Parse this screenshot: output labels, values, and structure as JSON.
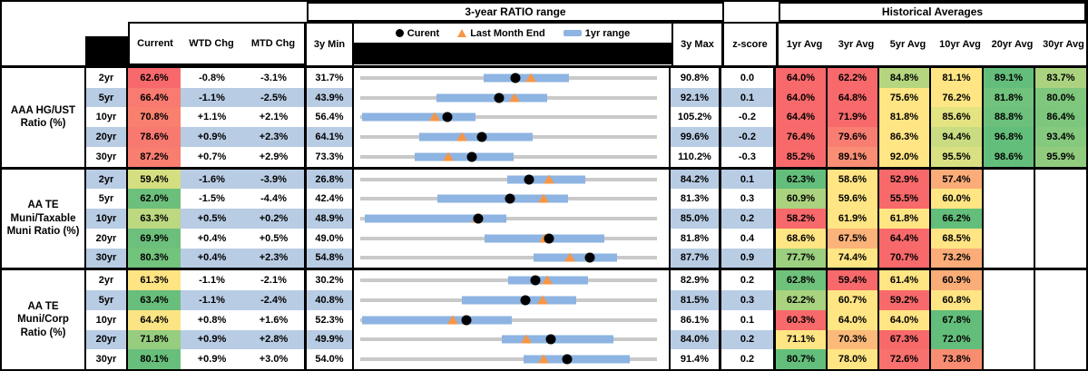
{
  "header": {
    "ratio_range_title": "3-year RATIO range",
    "historical_title": "Historical Averages",
    "columns": {
      "current": "Current",
      "wtd": "WTD Chg",
      "mtd": "MTD Chg",
      "min": "3y Min",
      "max": "3y Max",
      "zscore": "z-score"
    },
    "avg_headers": [
      "1yr Avg",
      "3yr Avg",
      "5yr Avg",
      "10yr Avg",
      "20yr Avg",
      "30yr Avg"
    ],
    "legend": {
      "current": "Curent",
      "last_month": "Last Month End",
      "range": "1yr range"
    }
  },
  "colors": {
    "row_alt": "#B8CCE4",
    "bar_1yr": "#8DB4E2",
    "track": "#C9C9C9",
    "marker_current": "#000000",
    "marker_last_month": "#F79646",
    "heat_red": "#F8696B",
    "heat_yellow": "#FFE583",
    "heat_green": "#63BE7B"
  },
  "chart_data": {
    "type": "table",
    "title": "3-year RATIO range",
    "note": "Each row shows current ratio, WTD/MTD change, 3y min/max, a bullet chart (gray = 3y range, blue = 1yr range, black dot = current, orange triangle = last month end), z-score and historical averages. range_low/range_high and last_month are values in % estimated from marker positions.",
    "groups": [
      {
        "label": "AAA HG/UST Ratio (%)",
        "rows": [
          {
            "tenor": "2yr",
            "current": 62.6,
            "current_bg": "#F8696B",
            "wtd": -0.8,
            "mtd": -3.1,
            "min": 31.7,
            "max": 90.8,
            "z": 0.0,
            "last_month": 65.7,
            "range_low": 56.3,
            "range_high": 73.2,
            "avgs": [
              {
                "v": 64.0,
                "bg": "#F8696B"
              },
              {
                "v": 62.2,
                "bg": "#F8696B"
              },
              {
                "v": 84.8,
                "bg": "#B5D67F"
              },
              {
                "v": 81.1,
                "bg": "#FFE583"
              },
              {
                "v": 89.1,
                "bg": "#63BE7B"
              },
              {
                "v": 83.7,
                "bg": "#ABD37F"
              }
            ]
          },
          {
            "tenor": "5yr",
            "current": 66.4,
            "current_bg": "#F87A71",
            "wtd": -1.1,
            "mtd": -2.5,
            "min": 43.9,
            "max": 92.1,
            "z": 0.1,
            "last_month": 68.9,
            "range_low": 56.3,
            "range_high": 74.2,
            "avgs": [
              {
                "v": 64.0,
                "bg": "#F8696B"
              },
              {
                "v": 64.8,
                "bg": "#F8696B"
              },
              {
                "v": 75.6,
                "bg": "#FFE583"
              },
              {
                "v": 76.2,
                "bg": "#FFE583"
              },
              {
                "v": 81.8,
                "bg": "#70C27C"
              },
              {
                "v": 80.0,
                "bg": "#7FC77D"
              }
            ]
          },
          {
            "tenor": "10yr",
            "current": 70.8,
            "current_bg": "#F9806F",
            "wtd": 1.1,
            "mtd": 2.1,
            "min": 56.4,
            "max": 105.2,
            "z": -0.2,
            "last_month": 68.7,
            "range_low": 56.7,
            "range_high": 75.4,
            "avgs": [
              {
                "v": 64.4,
                "bg": "#F8696B"
              },
              {
                "v": 71.9,
                "bg": "#F8696B"
              },
              {
                "v": 81.8,
                "bg": "#FFE583"
              },
              {
                "v": 85.6,
                "bg": "#E3E382"
              },
              {
                "v": 88.8,
                "bg": "#6CC07C"
              },
              {
                "v": 86.4,
                "bg": "#7CC67D"
              }
            ]
          },
          {
            "tenor": "20yr",
            "current": 78.6,
            "current_bg": "#F87970",
            "wtd": 0.9,
            "mtd": 2.3,
            "min": 64.1,
            "max": 99.6,
            "z": -0.2,
            "last_month": 76.3,
            "range_low": 71.2,
            "range_high": 84.7,
            "avgs": [
              {
                "v": 76.4,
                "bg": "#F8696B"
              },
              {
                "v": 79.6,
                "bg": "#F87E72"
              },
              {
                "v": 86.3,
                "bg": "#FFE583"
              },
              {
                "v": 94.4,
                "bg": "#C9DC81"
              },
              {
                "v": 96.8,
                "bg": "#63BE7B"
              },
              {
                "v": 93.4,
                "bg": "#85C97E"
              }
            ]
          },
          {
            "tenor": "30yr",
            "current": 87.2,
            "current_bg": "#F97E6F",
            "wtd": 0.7,
            "mtd": 2.9,
            "min": 73.3,
            "max": 110.2,
            "z": -0.3,
            "last_month": 84.3,
            "range_low": 80.1,
            "range_high": 92.4,
            "avgs": [
              {
                "v": 85.2,
                "bg": "#F8696B"
              },
              {
                "v": 89.1,
                "bg": "#F98E74"
              },
              {
                "v": 92.0,
                "bg": "#FFE583"
              },
              {
                "v": 95.5,
                "bg": "#D9E082"
              },
              {
                "v": 98.6,
                "bg": "#63BE7B"
              },
              {
                "v": 95.9,
                "bg": "#90CB7E"
              }
            ]
          }
        ]
      },
      {
        "label": "AA TE Muni/Taxable Muni Ratio (%)",
        "rows": [
          {
            "tenor": "2yr",
            "current": 59.4,
            "current_bg": "#D5DE81",
            "wtd": -1.6,
            "mtd": -3.9,
            "min": 26.8,
            "max": 84.2,
            "z": 0.1,
            "last_month": 63.3,
            "range_low": 55.3,
            "range_high": 70.4,
            "avgs": [
              {
                "v": 62.3,
                "bg": "#63BE7B"
              },
              {
                "v": 58.6,
                "bg": "#FFE583"
              },
              {
                "v": 52.9,
                "bg": "#F8696B"
              },
              {
                "v": 57.4,
                "bg": "#FBAC78"
              },
              {
                "v": null,
                "bg": null
              },
              {
                "v": null,
                "bg": null
              }
            ]
          },
          {
            "tenor": "5yr",
            "current": 62.0,
            "current_bg": "#6CC07C",
            "wtd": -1.5,
            "mtd": -4.4,
            "min": 42.4,
            "max": 81.3,
            "z": 0.3,
            "last_month": 66.4,
            "range_low": 52.5,
            "range_high": 69.6,
            "avgs": [
              {
                "v": 60.9,
                "bg": "#ABD37F"
              },
              {
                "v": 59.6,
                "bg": "#FFE583"
              },
              {
                "v": 55.5,
                "bg": "#F8696B"
              },
              {
                "v": 60.0,
                "bg": "#FFE583"
              },
              {
                "v": null,
                "bg": null
              },
              {
                "v": null,
                "bg": null
              }
            ]
          },
          {
            "tenor": "10yr",
            "current": 63.3,
            "current_bg": "#BCD880",
            "wtd": 0.5,
            "mtd": 0.2,
            "min": 48.9,
            "max": 85.0,
            "z": 0.2,
            "last_month": 63.1,
            "range_low": 49.4,
            "range_high": 66.7,
            "avgs": [
              {
                "v": 58.2,
                "bg": "#F8696B"
              },
              {
                "v": 61.9,
                "bg": "#FFE583"
              },
              {
                "v": 61.8,
                "bg": "#FFE583"
              },
              {
                "v": 66.2,
                "bg": "#63BE7B"
              },
              {
                "v": null,
                "bg": null
              },
              {
                "v": null,
                "bg": null
              }
            ]
          },
          {
            "tenor": "20yr",
            "current": 69.9,
            "current_bg": "#6CC07C",
            "wtd": 0.4,
            "mtd": 0.5,
            "min": 49.0,
            "max": 81.8,
            "z": 0.4,
            "last_month": 69.4,
            "range_low": 62.7,
            "range_high": 76.0,
            "avgs": [
              {
                "v": 68.6,
                "bg": "#FFE583"
              },
              {
                "v": 67.5,
                "bg": "#FBB379"
              },
              {
                "v": 64.4,
                "bg": "#F8696B"
              },
              {
                "v": 68.5,
                "bg": "#FFE583"
              },
              {
                "v": null,
                "bg": null
              },
              {
                "v": null,
                "bg": null
              }
            ]
          },
          {
            "tenor": "30yr",
            "current": 80.3,
            "current_bg": "#72C37C",
            "wtd": 0.4,
            "mtd": 2.3,
            "min": 54.8,
            "max": 87.7,
            "z": 0.9,
            "last_month": 78.0,
            "range_low": 74.0,
            "range_high": 83.3,
            "avgs": [
              {
                "v": 77.7,
                "bg": "#9CCF7F"
              },
              {
                "v": 74.4,
                "bg": "#FFE583"
              },
              {
                "v": 70.7,
                "bg": "#F8696B"
              },
              {
                "v": 73.2,
                "bg": "#FBAC78"
              },
              {
                "v": null,
                "bg": null
              },
              {
                "v": null,
                "bg": null
              }
            ]
          }
        ]
      },
      {
        "label": "AA TE Muni/Corp Ratio (%)",
        "rows": [
          {
            "tenor": "2yr",
            "current": 61.3,
            "current_bg": "#FFE483",
            "wtd": -1.1,
            "mtd": -2.1,
            "min": 30.2,
            "max": 82.9,
            "z": 0.2,
            "last_month": 63.4,
            "range_low": 56.4,
            "range_high": 70.7,
            "avgs": [
              {
                "v": 62.8,
                "bg": "#6FC27C"
              },
              {
                "v": 59.4,
                "bg": "#F8696B"
              },
              {
                "v": 61.4,
                "bg": "#FFE583"
              },
              {
                "v": 60.9,
                "bg": "#FBAD78"
              },
              {
                "v": null,
                "bg": null
              },
              {
                "v": null,
                "bg": null
              }
            ]
          },
          {
            "tenor": "5yr",
            "current": 63.4,
            "current_bg": "#68BF7B",
            "wtd": -1.1,
            "mtd": -2.4,
            "min": 40.8,
            "max": 81.5,
            "z": 0.3,
            "last_month": 65.8,
            "range_low": 54.7,
            "range_high": 70.4,
            "avgs": [
              {
                "v": 62.2,
                "bg": "#A9D37F"
              },
              {
                "v": 60.7,
                "bg": "#FFE583"
              },
              {
                "v": 59.2,
                "bg": "#F8696B"
              },
              {
                "v": 60.8,
                "bg": "#FFE583"
              },
              {
                "v": null,
                "bg": null
              },
              {
                "v": null,
                "bg": null
              }
            ]
          },
          {
            "tenor": "10yr",
            "current": 64.4,
            "current_bg": "#FBE483",
            "wtd": 0.8,
            "mtd": 1.6,
            "min": 52.3,
            "max": 86.1,
            "z": 0.1,
            "last_month": 62.8,
            "range_low": 52.5,
            "range_high": 69.6,
            "avgs": [
              {
                "v": 60.3,
                "bg": "#F8696B"
              },
              {
                "v": 64.0,
                "bg": "#FFE583"
              },
              {
                "v": 64.0,
                "bg": "#FFE583"
              },
              {
                "v": 67.8,
                "bg": "#63BE7B"
              },
              {
                "v": null,
                "bg": null
              },
              {
                "v": null,
                "bg": null
              }
            ]
          },
          {
            "tenor": "20yr",
            "current": 71.8,
            "current_bg": "#97CD7F",
            "wtd": 0.9,
            "mtd": 2.8,
            "min": 49.9,
            "max": 84.0,
            "z": 0.2,
            "last_month": 69.0,
            "range_low": 66.2,
            "range_high": 79.0,
            "avgs": [
              {
                "v": 71.1,
                "bg": "#FFE583"
              },
              {
                "v": 70.3,
                "bg": "#FBBA7A"
              },
              {
                "v": 67.3,
                "bg": "#F8696B"
              },
              {
                "v": 72.0,
                "bg": "#63BE7B"
              },
              {
                "v": null,
                "bg": null
              },
              {
                "v": null,
                "bg": null
              }
            ]
          },
          {
            "tenor": "30yr",
            "current": 80.1,
            "current_bg": "#68BF7B",
            "wtd": 0.9,
            "mtd": 3.0,
            "min": 54.0,
            "max": 91.4,
            "z": 0.2,
            "last_month": 77.1,
            "range_low": 74.6,
            "range_high": 88.0,
            "avgs": [
              {
                "v": 80.7,
                "bg": "#63BE7B"
              },
              {
                "v": 78.0,
                "bg": "#FFE583"
              },
              {
                "v": 72.6,
                "bg": "#F8716E"
              },
              {
                "v": 73.8,
                "bg": "#F98D71"
              },
              {
                "v": null,
                "bg": null
              },
              {
                "v": null,
                "bg": null
              }
            ]
          }
        ]
      }
    ]
  }
}
